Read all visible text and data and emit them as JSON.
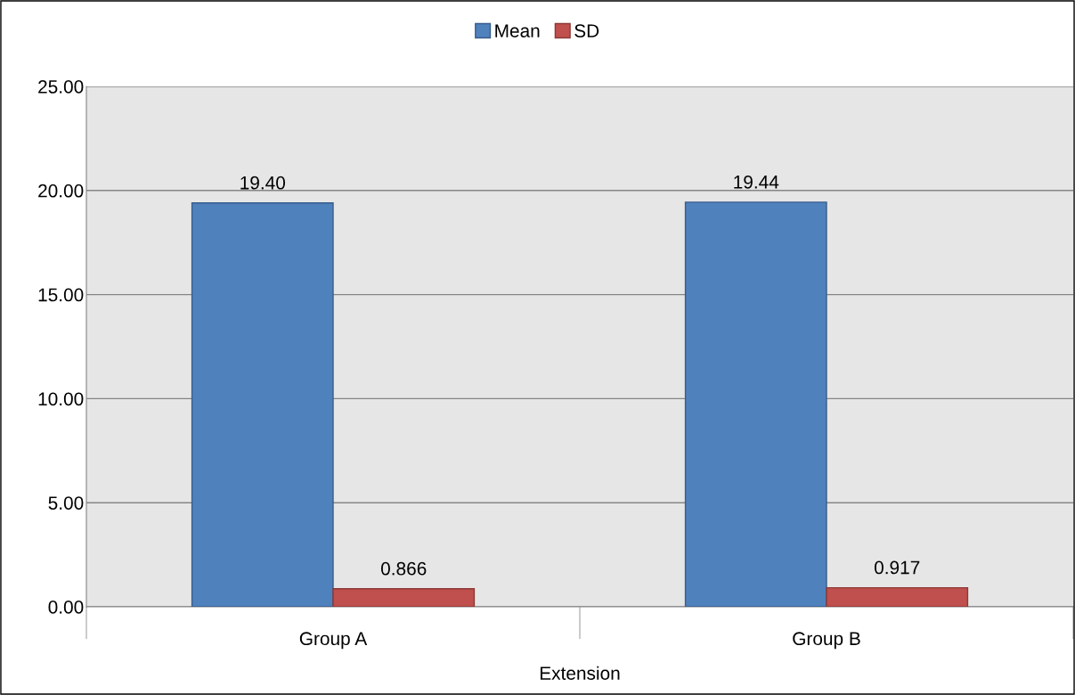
{
  "chart_data": {
    "type": "bar",
    "xlabel": "Extension",
    "categories": [
      "Group A",
      "Group B"
    ],
    "series": [
      {
        "name": "Mean",
        "color": "#4f81bd",
        "values": [
          19.4,
          19.44
        ],
        "value_labels": [
          "19.40",
          "19.44"
        ]
      },
      {
        "name": "SD",
        "color": "#c0504d",
        "values": [
          0.866,
          0.917
        ],
        "value_labels": [
          "0.866",
          "0.917"
        ]
      }
    ],
    "ylim": [
      0,
      25
    ],
    "yticks": [
      {
        "value": 0,
        "label": "0.00"
      },
      {
        "value": 5,
        "label": "5.00"
      },
      {
        "value": 10,
        "label": "10.00"
      },
      {
        "value": 15,
        "label": "15.00"
      },
      {
        "value": 20,
        "label": "20.00"
      },
      {
        "value": 25,
        "label": "25.00"
      }
    ],
    "grid": "y",
    "legend": "top"
  }
}
